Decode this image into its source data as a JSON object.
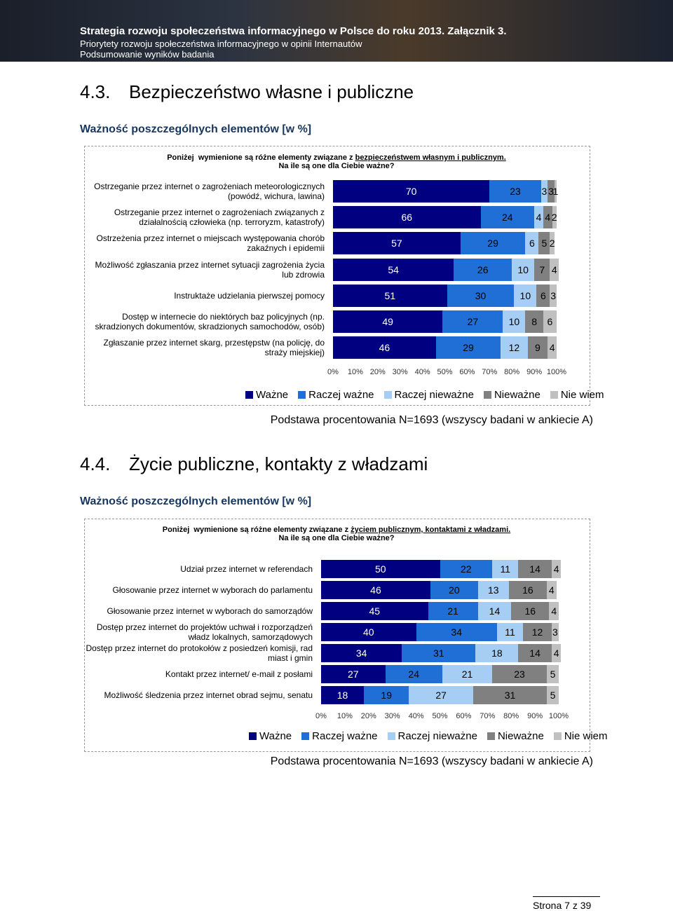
{
  "header": {
    "title": "Strategia rozwoju społeczeństwa informacyjnego w Polsce do roku 2013. Załącznik 3.",
    "subtitle": "Priorytety rozwoju społeczeństwa informacyjnego w opinii Internautów",
    "section": "Podsumowanie wyników badania"
  },
  "sections": [
    {
      "number": "4.3.",
      "title": "Bezpieczeństwo własne i publiczne",
      "subheading": "Ważność poszczególnych elementów [w %]",
      "question_lead": "Poniżej  wymienione są różne elementy związane z ",
      "question_topic": "bezpieczeństwem własnym i publicznym.",
      "question": "Na ile są one dla Ciebie ważne?",
      "base": "Podstawa procentowania N=1693 (wszyscy badani w ankiecie A)"
    },
    {
      "number": "4.4.",
      "title": "Życie publiczne, kontakty z władzami",
      "subheading": "Ważność poszczególnych elementów [w %]",
      "question_lead": "Poniżej  wymienione są różne elementy związane z ",
      "question_topic": "życiem publicznym, kontaktami z władzami.",
      "question": "Na ile są one dla Ciebie ważne?",
      "base": "Podstawa procentowania N=1693 (wszyscy badani w ankiecie A)"
    }
  ],
  "chart_data": [
    {
      "type": "bar",
      "orientation": "horizontal",
      "stacked": true,
      "categories": [
        "Ostrzeganie przez internet o zagrożeniach meteorologicznych (powódź, wichura, lawina)",
        "Ostrzeganie przez internet o zagrożeniach związanych z działalnością człowieka (np. terroryzm, katastrofy)",
        "Ostrzeżenia przez internet o miejscach występowania chorób zakaźnych i epidemii",
        "Możliwość zgłaszania przez internet sytuacji zagrożenia życia lub zdrowia",
        "Instruktaże udzielania pierwszej pomocy",
        "Dostęp w internecie do niektórych baz policyjnych (np. skradzionych dokumentów, skradzionych samochodów, osób)",
        "Zgłaszanie przez internet skarg, przestępstw (na policję, do straży miejskiej)"
      ],
      "series": [
        {
          "name": "Ważne",
          "color": "#000080",
          "values": [
            70,
            66,
            57,
            54,
            51,
            49,
            46
          ]
        },
        {
          "name": "Raczej ważne",
          "color": "#1f6fd6",
          "values": [
            23,
            24,
            29,
            26,
            30,
            27,
            29
          ]
        },
        {
          "name": "Raczej nieważne",
          "color": "#a6cef5",
          "values": [
            3,
            4,
            6,
            10,
            10,
            10,
            12
          ]
        },
        {
          "name": "Nieważne",
          "color": "#808080",
          "values": [
            3,
            4,
            5,
            7,
            6,
            8,
            9
          ]
        },
        {
          "name": "Nie wiem",
          "color": "#c0c0c0",
          "values": [
            1,
            2,
            2,
            4,
            3,
            6,
            4
          ]
        }
      ],
      "xlim": [
        0,
        100
      ],
      "xticks": [
        {
          "value": 0,
          "label": "0%"
        },
        {
          "value": 10,
          "label": "10%"
        },
        {
          "value": 20,
          "label": "20%"
        },
        {
          "value": 30,
          "label": "30%"
        },
        {
          "value": 40,
          "label": "40%"
        },
        {
          "value": 50,
          "label": "50%"
        },
        {
          "value": 60,
          "label": "60%"
        },
        {
          "value": 70,
          "label": "70%"
        },
        {
          "value": 80,
          "label": "80%"
        },
        {
          "value": 90,
          "label": "90%"
        },
        {
          "value": 100,
          "label": "100%"
        }
      ]
    },
    {
      "type": "bar",
      "orientation": "horizontal",
      "stacked": true,
      "categories": [
        "Udział przez internet w referendach",
        "Głosowanie przez internet w wyborach do parlamentu",
        "Głosowanie przez internet w wyborach do samorządów",
        "Dostęp przez internet do projektów uchwał i rozporządzeń władz lokalnych, samorządowych",
        "Dostęp przez internet do protokołów z posiedzeń komisji, rad miast i gmin",
        "Kontakt przez internet/ e-mail z posłami",
        "Możliwość śledzenia przez internet obrad sejmu, senatu"
      ],
      "series": [
        {
          "name": "Ważne",
          "color": "#000080",
          "values": [
            50,
            46,
            45,
            40,
            34,
            27,
            18
          ]
        },
        {
          "name": "Raczej ważne",
          "color": "#1f6fd6",
          "values": [
            22,
            20,
            21,
            34,
            31,
            24,
            19
          ]
        },
        {
          "name": "Raczej nieważne",
          "color": "#a6cef5",
          "values": [
            11,
            13,
            14,
            11,
            18,
            21,
            27
          ]
        },
        {
          "name": "Nieważne",
          "color": "#808080",
          "values": [
            14,
            16,
            16,
            12,
            14,
            23,
            31
          ]
        },
        {
          "name": "Nie wiem",
          "color": "#c0c0c0",
          "values": [
            4,
            4,
            4,
            3,
            4,
            5,
            5
          ]
        }
      ],
      "xlim": [
        0,
        100
      ],
      "xticks": [
        {
          "value": 0,
          "label": "0%"
        },
        {
          "value": 10,
          "label": "10%"
        },
        {
          "value": 20,
          "label": "20%"
        },
        {
          "value": 30,
          "label": "30%"
        },
        {
          "value": 40,
          "label": "40%"
        },
        {
          "value": 50,
          "label": "50%"
        },
        {
          "value": 60,
          "label": "60%"
        },
        {
          "value": 70,
          "label": "70%"
        },
        {
          "value": 80,
          "label": "80%"
        },
        {
          "value": 90,
          "label": "90%"
        },
        {
          "value": 100,
          "label": "100%"
        }
      ]
    }
  ],
  "footer": {
    "page": "Strona 7 z 39"
  }
}
